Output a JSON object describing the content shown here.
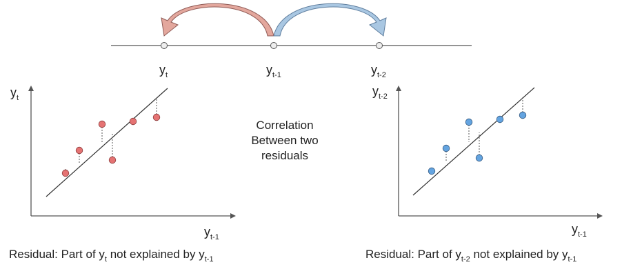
{
  "timeline": {
    "nodes": [
      {
        "main": "y",
        "sub": "t"
      },
      {
        "main": "y",
        "sub": "t-1"
      },
      {
        "main": "y",
        "sub": "t-2"
      }
    ]
  },
  "center": {
    "line1": "Correlation",
    "line2": "Between two",
    "line3": "residuals"
  },
  "left_plot": {
    "ylabel_main": "y",
    "ylabel_sub": "t",
    "xlabel_main": "y",
    "xlabel_sub": "t-1",
    "color": "#e57373"
  },
  "right_plot": {
    "ylabel_main": "y",
    "ylabel_sub": "t-2",
    "xlabel_main": "y",
    "xlabel_sub": "t-1",
    "color": "#64a4e0"
  },
  "captions": {
    "left": {
      "prefix": "Residual: Part of ",
      "v1": "y",
      "s1": "t",
      "mid": " not explained by ",
      "v2": "y",
      "s2": "t-1"
    },
    "right": {
      "prefix": "Residual: Part of ",
      "v1": "y",
      "s1": "t-2",
      "mid": " not explained by ",
      "v2": "y",
      "s2": "t-1"
    }
  },
  "colors": {
    "arrow_left_fill": "#e3a79d",
    "arrow_left_base": "#a86a63",
    "arrow_right_fill": "#a9c7e2",
    "arrow_right_base": "#5f7e9e",
    "axis": "#555555"
  }
}
